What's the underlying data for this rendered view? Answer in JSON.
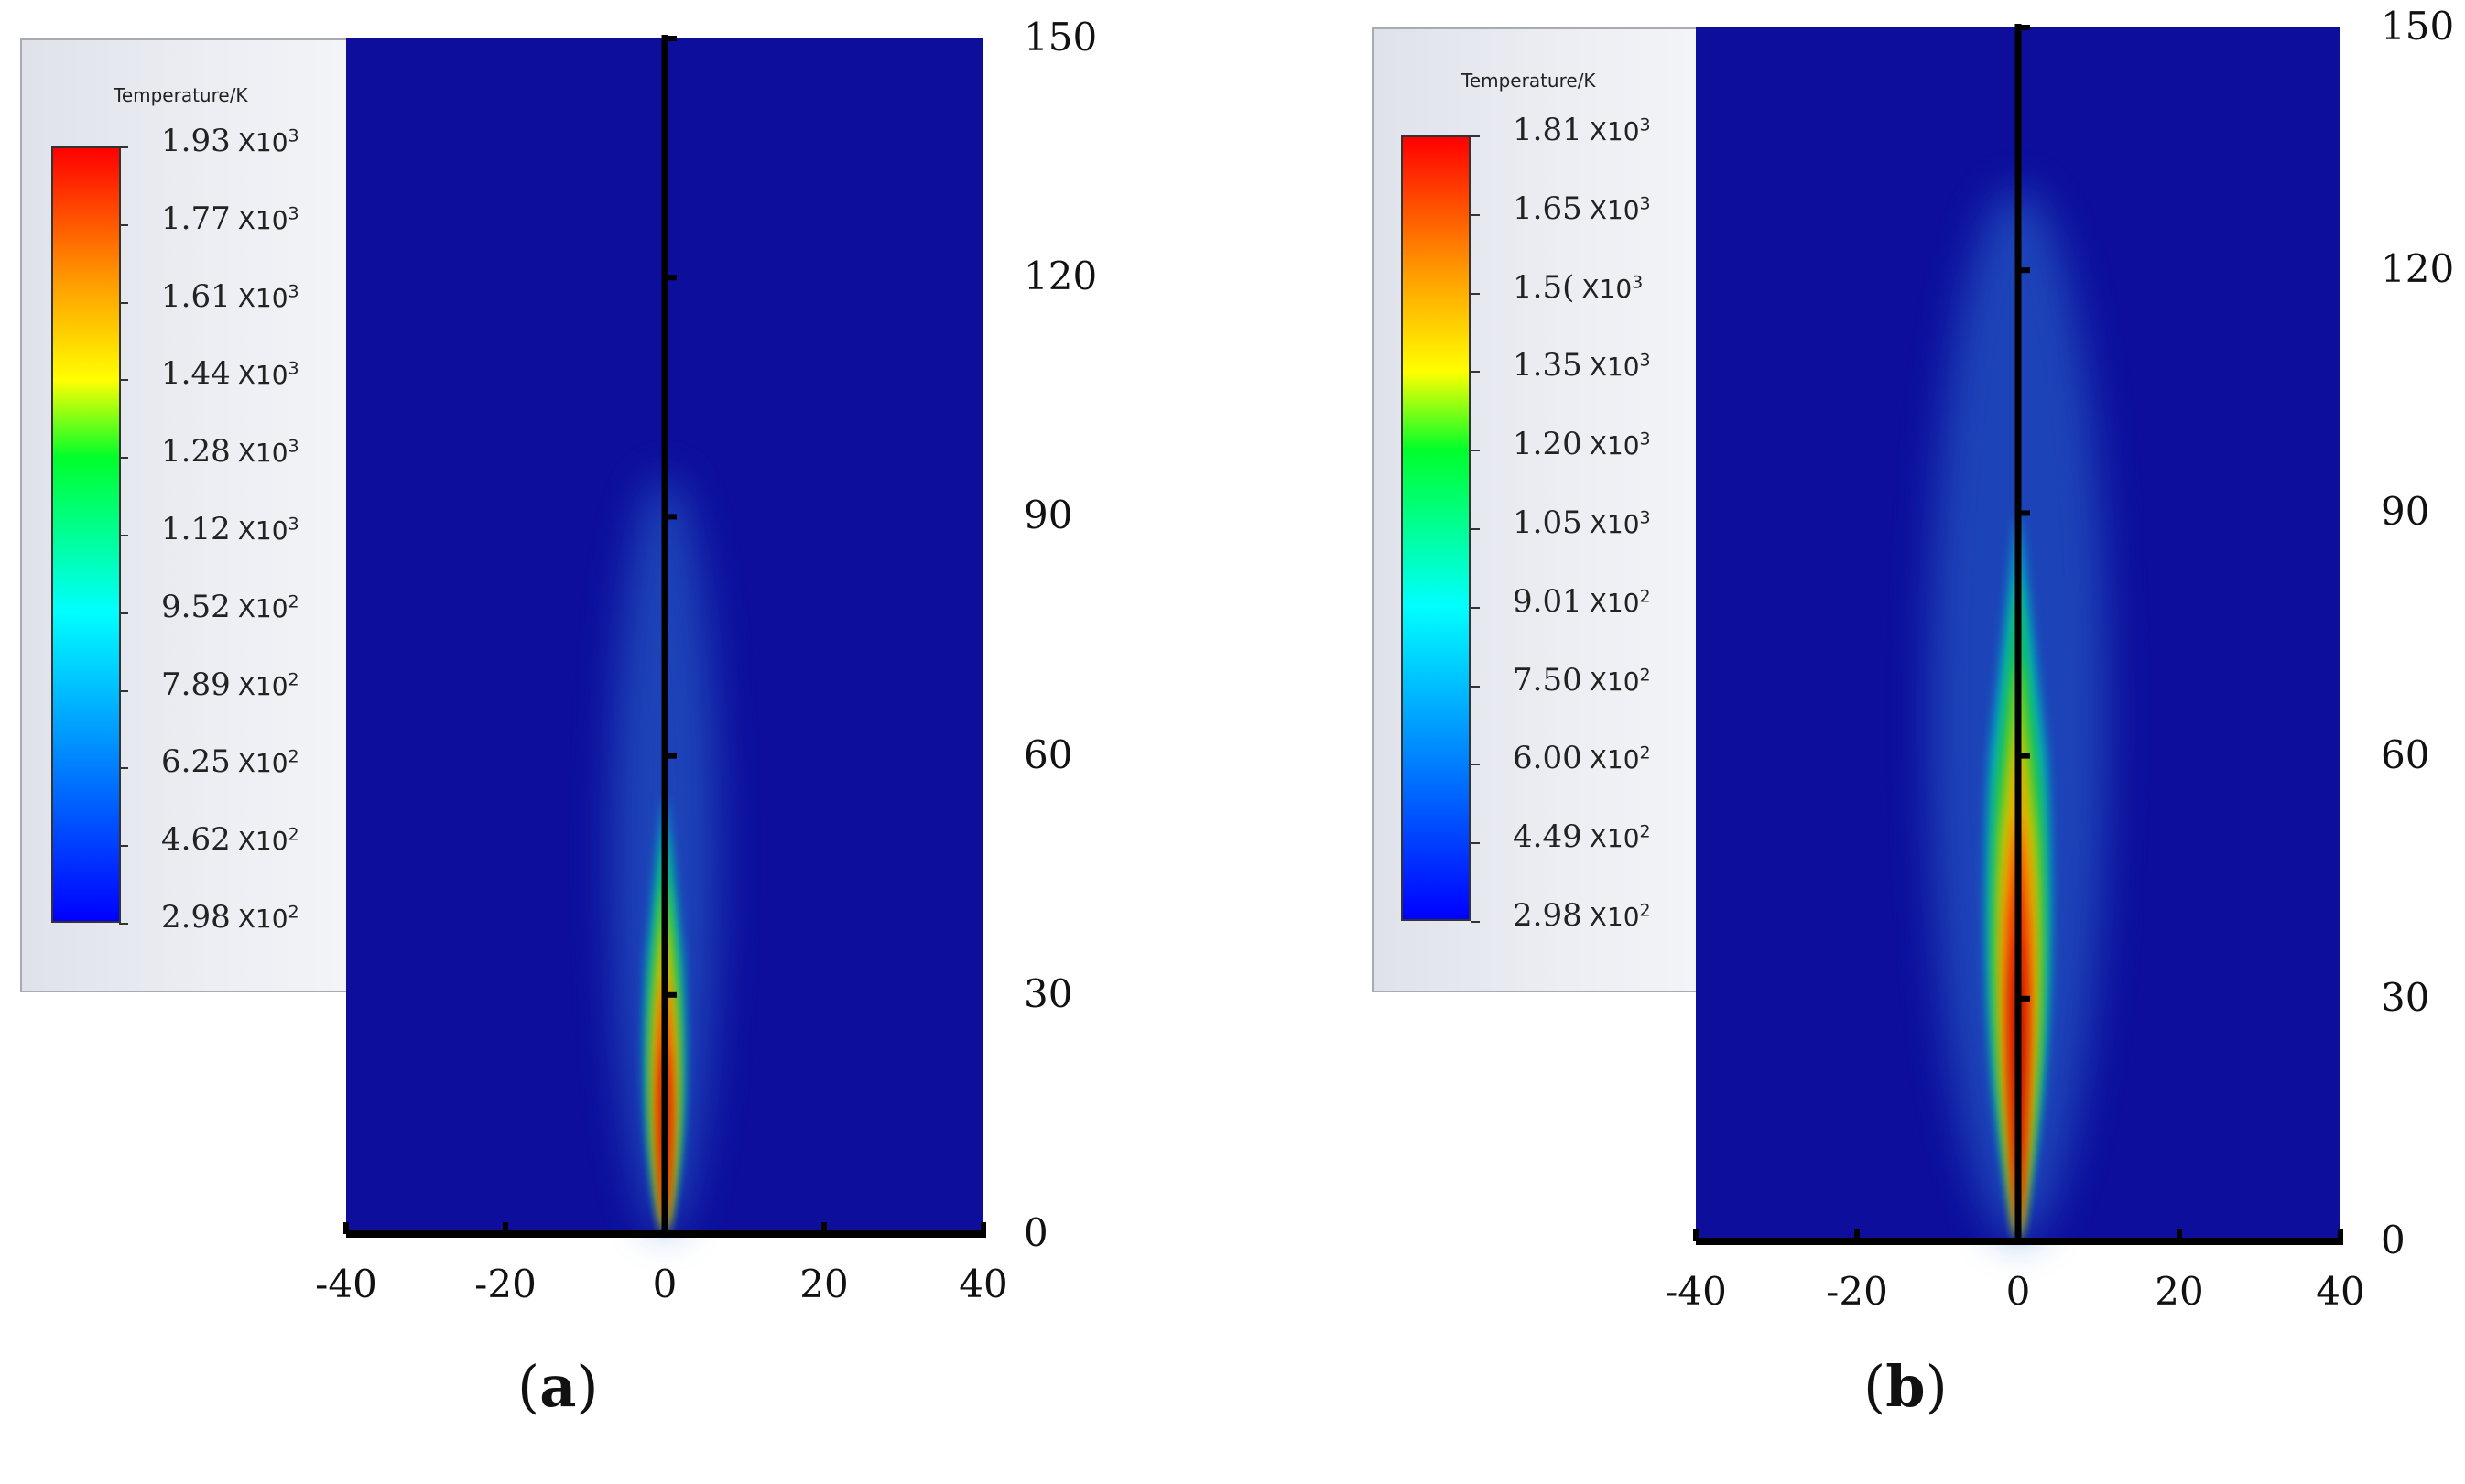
{
  "chart_data": [
    {
      "type": "heatmap",
      "panel_label": "a",
      "colorbar": {
        "title": "Temperature/K",
        "levels": [
          {
            "value": "1.93",
            "exponent_label": "X10",
            "exponent": "3"
          },
          {
            "value": "1.77",
            "exponent_label": "X10",
            "exponent": "3"
          },
          {
            "value": "1.61",
            "exponent_label": "X10",
            "exponent": "3"
          },
          {
            "value": "1.44",
            "exponent_label": "X10",
            "exponent": "3"
          },
          {
            "value": "1.28",
            "exponent_label": "X10",
            "exponent": "3"
          },
          {
            "value": "1.12",
            "exponent_label": "X10",
            "exponent": "3"
          },
          {
            "value": "9.52",
            "exponent_label": "X10",
            "exponent": "2"
          },
          {
            "value": "7.89",
            "exponent_label": "X10",
            "exponent": "2"
          },
          {
            "value": "6.25",
            "exponent_label": "X10",
            "exponent": "2"
          },
          {
            "value": "4.62",
            "exponent_label": "X10",
            "exponent": "2"
          },
          {
            "value": "2.98",
            "exponent_label": "X10",
            "exponent": "2"
          }
        ],
        "range": [
          298,
          1930
        ]
      },
      "x_ticks": [
        "-40",
        "-20",
        "0",
        "20",
        "40"
      ],
      "y_ticks": [
        "150",
        "120",
        "90",
        "60",
        "30",
        "0"
      ],
      "xlim": [
        -40,
        40
      ],
      "ylim": [
        0,
        150
      ],
      "flame": {
        "peak_y": 15,
        "extent_y": 55,
        "max_half_width_x": 3
      }
    },
    {
      "type": "heatmap",
      "panel_label": "b",
      "colorbar": {
        "title": "Temperature/K",
        "levels": [
          {
            "value": "1.81",
            "exponent_label": "X10",
            "exponent": "3"
          },
          {
            "value": "1.65",
            "exponent_label": "X10",
            "exponent": "3"
          },
          {
            "value": "1.5(",
            "exponent_label": "X10",
            "exponent": "3"
          },
          {
            "value": "1.35",
            "exponent_label": "X10",
            "exponent": "3"
          },
          {
            "value": "1.20",
            "exponent_label": "X10",
            "exponent": "3"
          },
          {
            "value": "1.05",
            "exponent_label": "X10",
            "exponent": "3"
          },
          {
            "value": "9.01",
            "exponent_label": "X10",
            "exponent": "2"
          },
          {
            "value": "7.50",
            "exponent_label": "X10",
            "exponent": "2"
          },
          {
            "value": "6.00",
            "exponent_label": "X10",
            "exponent": "2"
          },
          {
            "value": "4.49",
            "exponent_label": "X10",
            "exponent": "2"
          },
          {
            "value": "2.98",
            "exponent_label": "X10",
            "exponent": "2"
          }
        ],
        "range": [
          298,
          1810
        ]
      },
      "x_ticks": [
        "-40",
        "-20",
        "0",
        "20",
        "40"
      ],
      "y_ticks": [
        "150",
        "120",
        "90",
        "60",
        "30",
        "0"
      ],
      "xlim": [
        -40,
        40
      ],
      "ylim": [
        0,
        150
      ],
      "flame": {
        "peak_y": 30,
        "extent_y": 90,
        "max_half_width_x": 5
      }
    }
  ],
  "colors": {
    "background_field": "#0d0f9c",
    "axis": "#000000"
  }
}
